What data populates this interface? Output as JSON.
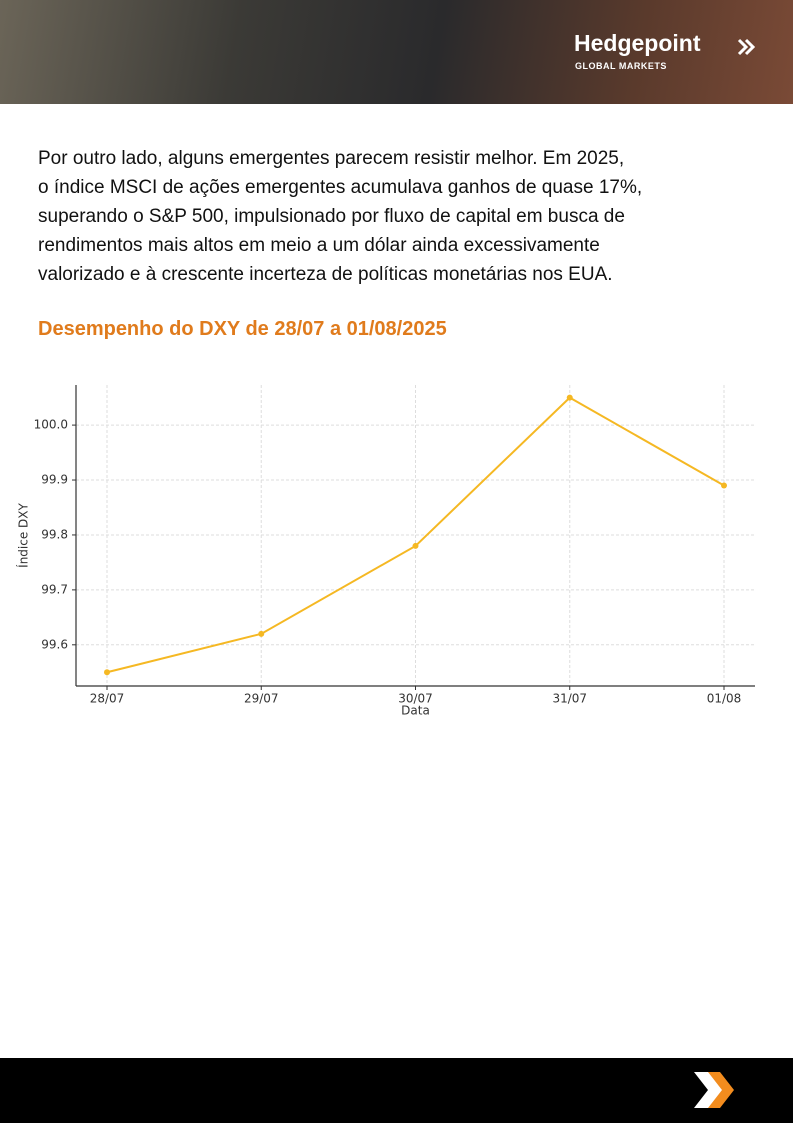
{
  "header": {
    "brand": "Hedgepoint",
    "subtitle": "GLOBAL MARKETS"
  },
  "paragraph": [
    "Por outro lado, alguns emergentes parecem resistir melhor. Em 2025,",
    "o índice MSCI de ações emergentes acumulava ganhos de quase 17%,",
    "superando o S&P 500, impulsionado por fluxo de capital em busca de",
    "rendimentos mais altos em meio a um dólar ainda excessivamente",
    "valorizado e à crescente incerteza de políticas monetárias nos EUA."
  ],
  "section_title": "Desempenho do DXY de 28/07 a 01/08/2025",
  "chart_data": {
    "type": "line",
    "x_label": "Data",
    "y_label": "Índice DXY",
    "categories": [
      "28/07",
      "29/07",
      "30/07",
      "31/07",
      "01/08"
    ],
    "series": [
      {
        "name": "DXY",
        "color": "#f5b823",
        "values": [
          99.55,
          99.62,
          99.78,
          100.05,
          99.89
        ]
      }
    ],
    "ylim": [
      99.525,
      100.073
    ],
    "yticks": [
      99.6,
      99.7,
      99.8,
      99.9,
      {
        "value": 100,
        "label": "100.0"
      }
    ],
    "grid": true
  }
}
